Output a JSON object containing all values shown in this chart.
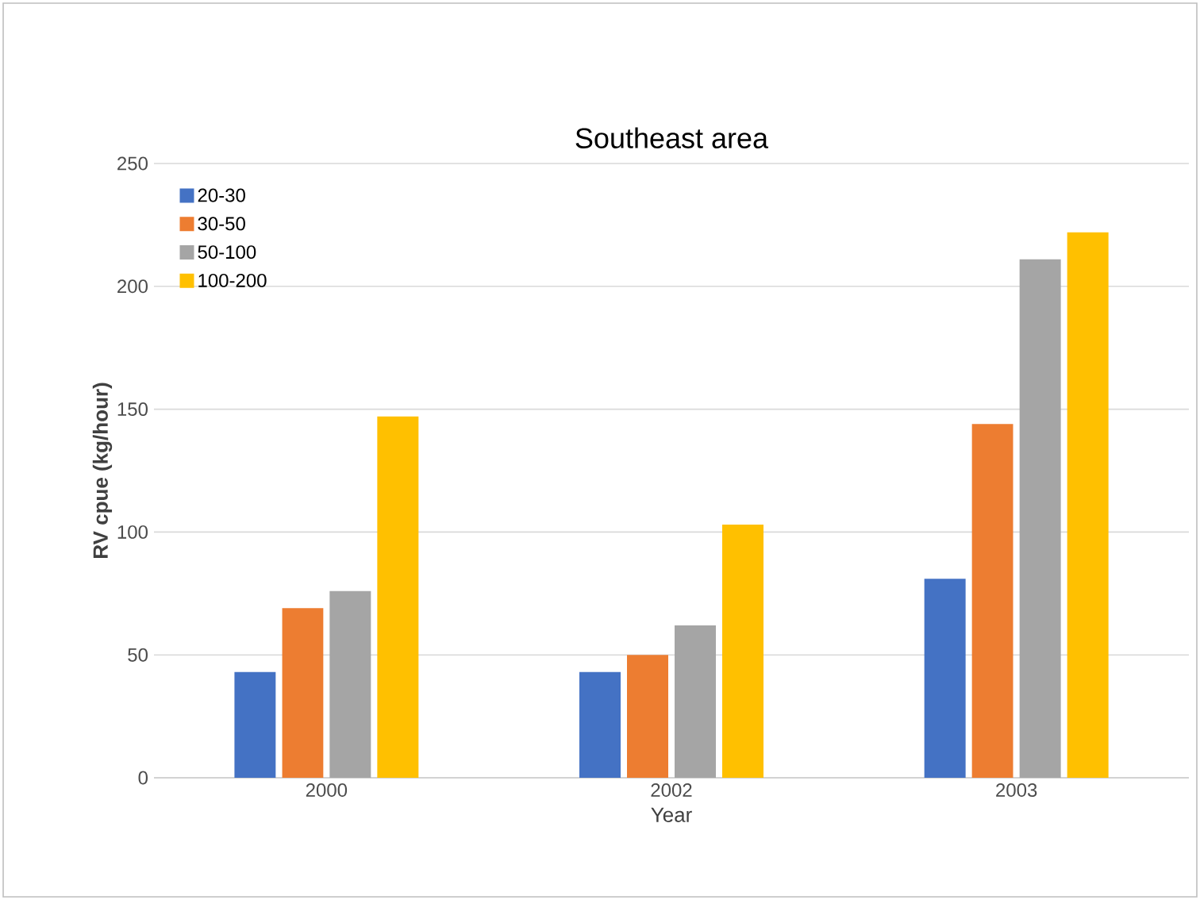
{
  "chart_data": {
    "type": "bar",
    "title": "Southeast area",
    "xlabel": "Year",
    "ylabel": "RV cpue (kg/hour)",
    "categories": [
      "2000",
      "2002",
      "2003"
    ],
    "series": [
      {
        "name": "20-30",
        "color": "#4472c4",
        "values": [
          43,
          43,
          81
        ]
      },
      {
        "name": "30-50",
        "color": "#ed7d31",
        "values": [
          69,
          50,
          144
        ]
      },
      {
        "name": "50-100",
        "color": "#a5a5a5",
        "values": [
          76,
          62,
          211
        ]
      },
      {
        "name": "100-200",
        "color": "#ffc000",
        "values": [
          147,
          103,
          222
        ]
      }
    ],
    "ylim": [
      0,
      250
    ],
    "yticks": [
      0,
      50,
      100,
      150,
      200,
      250
    ],
    "grid": "y",
    "legend": "top left"
  }
}
